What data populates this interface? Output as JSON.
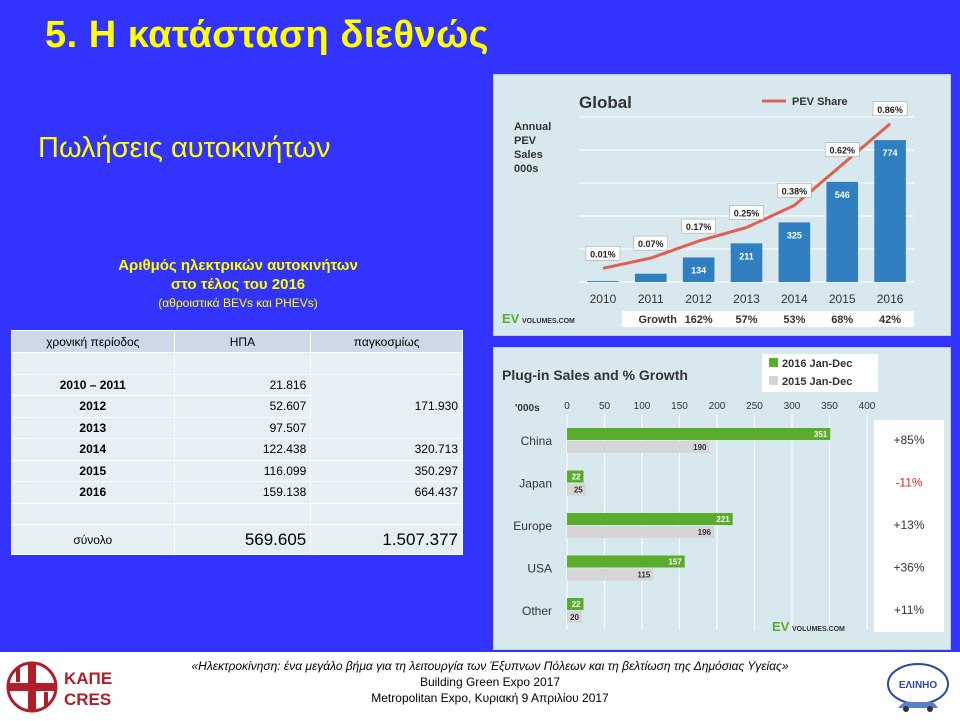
{
  "slide": {
    "title": "5.  Η κατάσταση διεθνώς",
    "subtitle": "Πωλήσεις αυτοκινήτων"
  },
  "table": {
    "caption_line1": "Αριθμός ηλεκτρικών αυτοκινήτων",
    "caption_line2": "στο τέλος του 2016",
    "caption_line3": "(αθροιστικά BEVs και PHEVs)",
    "headers": [
      "χρονική περίοδος",
      "ΗΠΑ",
      "παγκοσμίως"
    ],
    "rows": [
      {
        "period": "2010 – 2011",
        "usa": "21.816"
      },
      {
        "period": "2012",
        "usa": "52.607"
      },
      {
        "period": "2013",
        "usa": "97.507"
      },
      {
        "period": "2014",
        "usa": "122.438",
        "world": "320.713"
      },
      {
        "period": "2015",
        "usa": "116.099",
        "world": "350.297"
      },
      {
        "period": "2016",
        "usa": "159.138",
        "world": "664.437"
      }
    ],
    "merged_world_2010_2013": "171.930",
    "total": {
      "label": "σύνολο",
      "usa": "569.605",
      "world": "1.507.377"
    }
  },
  "chart_data": [
    {
      "type": "bar",
      "title": "Global",
      "ylabel": "Annual PEV Sales 000s",
      "legend": "PEV Share",
      "categories": [
        "2010",
        "2011",
        "2012",
        "2013",
        "2014",
        "2015",
        "2016"
      ],
      "series": [
        {
          "name": "Annual PEV Sales 000s",
          "values": [
            5,
            45,
            134,
            211,
            325,
            546,
            774
          ]
        },
        {
          "name": "PEV Share",
          "values": [
            0.01,
            0.07,
            0.17,
            0.25,
            0.38,
            0.62,
            0.86
          ]
        }
      ],
      "bar_labels": [
        "",
        "",
        "134",
        "211",
        "325",
        "546",
        "774"
      ],
      "share_labels": [
        "0.01%",
        "0.07%",
        "0.17%",
        "0.25%",
        "0.38%",
        "0.62%",
        "0.86%"
      ],
      "growth_label": "Growth",
      "growth": [
        "162%",
        "57%",
        "53%",
        "68%",
        "42%"
      ],
      "ylim": [
        0,
        900
      ],
      "source_logo": "EVvolumes.com",
      "colors": {
        "bar": "#2f7fc1",
        "line": "#e0604f",
        "bg": "#d7e9ee"
      }
    },
    {
      "type": "bar",
      "orientation": "horizontal",
      "title": "Plug-in Sales and % Growth",
      "unit_label": "'000s",
      "xticks": [
        "0",
        "50",
        "100",
        "150",
        "200",
        "250",
        "300",
        "350",
        "400"
      ],
      "xlim": [
        0,
        400
      ],
      "categories": [
        "China",
        "Japan",
        "Europe",
        "USA",
        "Other"
      ],
      "series": [
        {
          "name": "2016 Jan-Dec",
          "values": [
            351,
            22,
            221,
            157,
            22
          ]
        },
        {
          "name": "2015 Jan-Dec",
          "values": [
            190,
            25,
            196,
            115,
            20
          ]
        }
      ],
      "growth": [
        "+85%",
        "-11%",
        "+13%",
        "+36%",
        "+11%"
      ],
      "source_logo": "EVvolumes.com",
      "colors": {
        "s2016": "#5aac2c",
        "s2015": "#d6d6d6",
        "neg": "#d8281f"
      }
    }
  ],
  "footer": {
    "logo_kape": "ΚΑΠΕ",
    "logo_cres": "CRES",
    "line1": "«Ηλεκτροκίνηση: ένα μεγάλο βήμα για τη λειτουργία των Έξυπνων Πόλεων και τη βελτίωση της Δημόσιας Υγείας»",
    "line2": "Building Green Expo 2017",
    "line3": "Metropolitan Expo, Κυριακή 9 Απριλίου 2017",
    "logo_elinho": "ΕΛΙΝΗΟ"
  }
}
